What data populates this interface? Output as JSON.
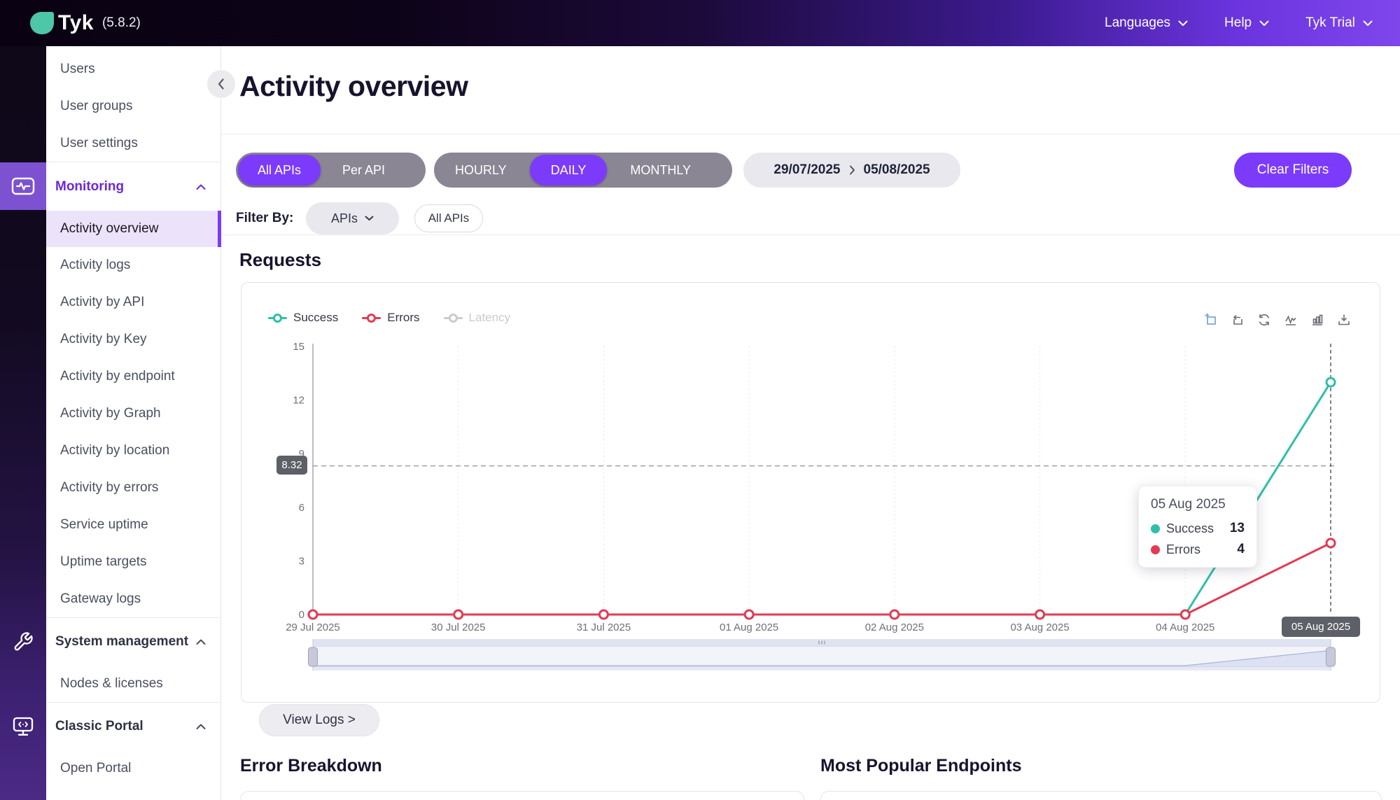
{
  "topbar": {
    "brand": "Tyk",
    "version": "(5.8.2)",
    "nav": [
      {
        "label": "Languages"
      },
      {
        "label": "Help"
      },
      {
        "label": "Tyk Trial"
      }
    ]
  },
  "sidebar": {
    "top_items": [
      {
        "label": "Users"
      },
      {
        "label": "User groups"
      },
      {
        "label": "User settings"
      }
    ],
    "monitoring": {
      "label": "Monitoring",
      "items": [
        {
          "label": "Activity overview",
          "active": true
        },
        {
          "label": "Activity logs"
        },
        {
          "label": "Activity by API"
        },
        {
          "label": "Activity by Key"
        },
        {
          "label": "Activity by endpoint"
        },
        {
          "label": "Activity by Graph"
        },
        {
          "label": "Activity by location"
        },
        {
          "label": "Activity by errors"
        },
        {
          "label": "Service uptime"
        },
        {
          "label": "Uptime targets"
        },
        {
          "label": "Gateway logs"
        }
      ]
    },
    "system": {
      "label": "System management",
      "items": [
        {
          "label": "Nodes & licenses"
        }
      ]
    },
    "portal": {
      "label": "Classic Portal",
      "items": [
        {
          "label": "Open Portal"
        }
      ]
    },
    "icons": {
      "monitoring": "activity-pulse-icon",
      "system": "wrench-icon",
      "portal": "monitor-code-icon"
    }
  },
  "page": {
    "title": "Activity overview"
  },
  "filters": {
    "scope_options": [
      "All APIs",
      "Per API"
    ],
    "scope_selected": "All APIs",
    "granularity_options": [
      "HOURLY",
      "DAILY",
      "MONTHLY"
    ],
    "granularity_selected": "DAILY",
    "date_from": "29/07/2025",
    "date_to": "05/08/2025",
    "clear_label": "Clear Filters",
    "filter_by_label": "Filter By:",
    "api_dropdown_label": "APIs",
    "api_chip_label": "All APIs"
  },
  "requests": {
    "title": "Requests",
    "view_logs_label": "View Logs >"
  },
  "chart_data": {
    "type": "line",
    "title": "Requests",
    "categories": [
      "29 Jul 2025",
      "30 Jul 2025",
      "31 Jul 2025",
      "01 Aug 2025",
      "02 Aug 2025",
      "03 Aug 2025",
      "04 Aug 2025",
      "05 Aug 2025"
    ],
    "series": [
      {
        "name": "Success",
        "color": "#2FBFA9",
        "values": [
          0,
          0,
          0,
          0,
          0,
          0,
          0,
          13
        ]
      },
      {
        "name": "Errors",
        "color": "#E23B55",
        "values": [
          0,
          0,
          0,
          0,
          0,
          0,
          0,
          4
        ]
      },
      {
        "name": "Latency",
        "color": "#C9CBD0",
        "values": null,
        "disabled": true
      }
    ],
    "ylim": [
      0,
      15
    ],
    "yticks": [
      0,
      3,
      6,
      9,
      12,
      15
    ],
    "grid": "vertical-dotted",
    "legend_position": "top-left",
    "average_line": {
      "value": 8.32,
      "label": "8.32"
    },
    "axis_pointer": {
      "category": "05 Aug 2025",
      "label": "05 Aug 2025"
    },
    "tooltip": {
      "title": "05 Aug 2025",
      "rows": [
        {
          "name": "Success",
          "value": "13",
          "color": "#2FBFA9"
        },
        {
          "name": "Errors",
          "value": "4",
          "color": "#E23B55"
        }
      ]
    },
    "toolbox_icons": [
      "zoom-select",
      "zoom-reset",
      "restore",
      "line-chart",
      "bar-chart",
      "download"
    ]
  },
  "bottom": {
    "left_title": "Error Breakdown",
    "right_title": "Most Popular Endpoints"
  },
  "colors": {
    "accent_purple": "#7C3BFA",
    "pill_gray": "#8B8694",
    "success": "#2FBFA9",
    "error": "#E23B55",
    "brand_teal": "#4EC6A8"
  }
}
